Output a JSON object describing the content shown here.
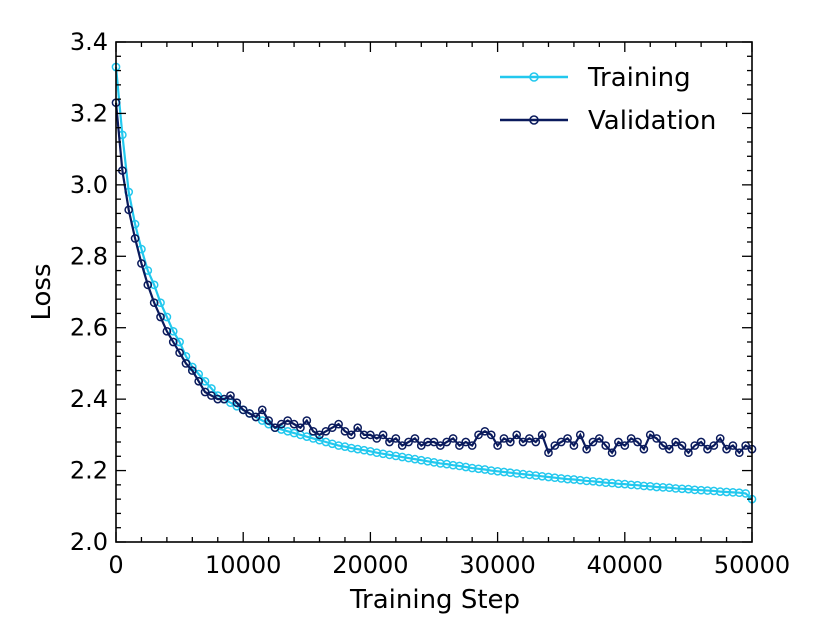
{
  "chart_data": {
    "type": "line",
    "title": "",
    "xlabel": "Training Step",
    "ylabel": "Loss",
    "xlim": [
      0,
      50000
    ],
    "ylim": [
      2.0,
      3.4
    ],
    "x_ticks": [
      0,
      10000,
      20000,
      30000,
      40000,
      50000
    ],
    "y_ticks": [
      2.0,
      2.2,
      2.4,
      2.6,
      2.8,
      3.0,
      3.2,
      3.4
    ],
    "x_tick_labels": [
      "0",
      "10000",
      "20000",
      "30000",
      "40000",
      "50000"
    ],
    "y_tick_labels": [
      "2.0",
      "2.2",
      "2.4",
      "2.6",
      "2.8",
      "3.0",
      "3.2",
      "3.4"
    ],
    "grid": false,
    "legend_position": "top-right",
    "series": [
      {
        "name": "Training",
        "color": "#22c8ee",
        "marker": "open-circle",
        "x": [
          0,
          500,
          1000,
          1500,
          2000,
          2500,
          3000,
          3500,
          4000,
          4500,
          5000,
          5500,
          6000,
          6500,
          7000,
          7500,
          8000,
          8500,
          9000,
          9500,
          10000,
          10500,
          11000,
          11500,
          12000,
          12500,
          13000,
          13500,
          14000,
          14500,
          15000,
          15500,
          16000,
          16500,
          17000,
          17500,
          18000,
          18500,
          19000,
          19500,
          20000,
          20500,
          21000,
          21500,
          22000,
          22500,
          23000,
          23500,
          24000,
          24500,
          25000,
          25500,
          26000,
          26500,
          27000,
          27500,
          28000,
          28500,
          29000,
          29500,
          30000,
          30500,
          31000,
          31500,
          32000,
          32500,
          33000,
          33500,
          34000,
          34500,
          35000,
          35500,
          36000,
          36500,
          37000,
          37500,
          38000,
          38500,
          39000,
          39500,
          40000,
          40500,
          41000,
          41500,
          42000,
          42500,
          43000,
          43500,
          44000,
          44500,
          45000,
          45500,
          46000,
          46500,
          47000,
          47500,
          48000,
          48500,
          49000,
          49500,
          50000
        ],
        "y": [
          3.33,
          3.14,
          2.98,
          2.89,
          2.82,
          2.76,
          2.72,
          2.67,
          2.63,
          2.59,
          2.56,
          2.52,
          2.49,
          2.47,
          2.45,
          2.43,
          2.41,
          2.4,
          2.39,
          2.38,
          2.37,
          2.36,
          2.35,
          2.34,
          2.33,
          2.32,
          2.315,
          2.31,
          2.305,
          2.3,
          2.295,
          2.29,
          2.285,
          2.28,
          2.275,
          2.27,
          2.267,
          2.263,
          2.26,
          2.257,
          2.254,
          2.25,
          2.247,
          2.244,
          2.241,
          2.238,
          2.235,
          2.232,
          2.229,
          2.226,
          2.223,
          2.22,
          2.218,
          2.215,
          2.213,
          2.21,
          2.207,
          2.205,
          2.203,
          2.2,
          2.198,
          2.196,
          2.194,
          2.192,
          2.19,
          2.188,
          2.186,
          2.184,
          2.182,
          2.18,
          2.178,
          2.176,
          2.175,
          2.173,
          2.171,
          2.17,
          2.168,
          2.166,
          2.165,
          2.163,
          2.162,
          2.16,
          2.159,
          2.157,
          2.156,
          2.154,
          2.153,
          2.152,
          2.15,
          2.149,
          2.148,
          2.146,
          2.145,
          2.144,
          2.143,
          2.141,
          2.14,
          2.139,
          2.138,
          2.136,
          2.12
        ]
      },
      {
        "name": "Validation",
        "color": "#0a1a5c",
        "marker": "open-circle",
        "x": [
          0,
          500,
          1000,
          1500,
          2000,
          2500,
          3000,
          3500,
          4000,
          4500,
          5000,
          5500,
          6000,
          6500,
          7000,
          7500,
          8000,
          8500,
          9000,
          9500,
          10000,
          10500,
          11000,
          11500,
          12000,
          12500,
          13000,
          13500,
          14000,
          14500,
          15000,
          15500,
          16000,
          16500,
          17000,
          17500,
          18000,
          18500,
          19000,
          19500,
          20000,
          20500,
          21000,
          21500,
          22000,
          22500,
          23000,
          23500,
          24000,
          24500,
          25000,
          25500,
          26000,
          26500,
          27000,
          27500,
          28000,
          28500,
          29000,
          29500,
          30000,
          30500,
          31000,
          31500,
          32000,
          32500,
          33000,
          33500,
          34000,
          34500,
          35000,
          35500,
          36000,
          36500,
          37000,
          37500,
          38000,
          38500,
          39000,
          39500,
          40000,
          40500,
          41000,
          41500,
          42000,
          42500,
          43000,
          43500,
          44000,
          44500,
          45000,
          45500,
          46000,
          46500,
          47000,
          47500,
          48000,
          48500,
          49000,
          49500,
          50000
        ],
        "y": [
          3.23,
          3.04,
          2.93,
          2.85,
          2.78,
          2.72,
          2.67,
          2.63,
          2.59,
          2.56,
          2.53,
          2.5,
          2.48,
          2.45,
          2.42,
          2.41,
          2.4,
          2.4,
          2.41,
          2.39,
          2.37,
          2.36,
          2.35,
          2.37,
          2.34,
          2.32,
          2.33,
          2.34,
          2.33,
          2.32,
          2.34,
          2.31,
          2.3,
          2.31,
          2.32,
          2.33,
          2.31,
          2.3,
          2.32,
          2.3,
          2.3,
          2.29,
          2.3,
          2.28,
          2.29,
          2.27,
          2.28,
          2.29,
          2.27,
          2.28,
          2.28,
          2.27,
          2.28,
          2.29,
          2.27,
          2.28,
          2.27,
          2.3,
          2.31,
          2.3,
          2.27,
          2.29,
          2.28,
          2.3,
          2.28,
          2.29,
          2.28,
          2.3,
          2.25,
          2.27,
          2.28,
          2.29,
          2.27,
          2.3,
          2.26,
          2.28,
          2.29,
          2.27,
          2.25,
          2.28,
          2.27,
          2.29,
          2.28,
          2.26,
          2.3,
          2.29,
          2.27,
          2.26,
          2.28,
          2.27,
          2.25,
          2.27,
          2.28,
          2.26,
          2.27,
          2.29,
          2.26,
          2.27,
          2.25,
          2.27,
          2.26
        ]
      }
    ]
  }
}
